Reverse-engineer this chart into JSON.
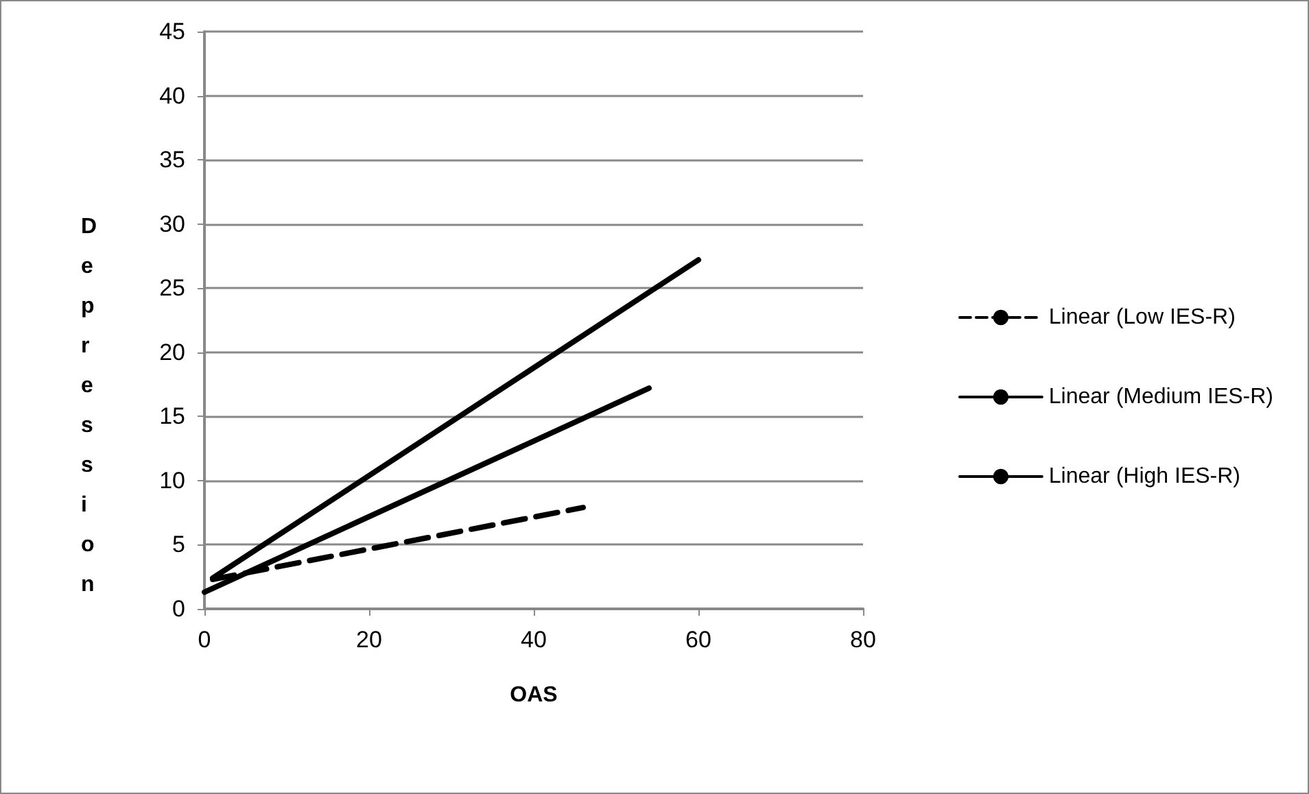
{
  "chart_data": {
    "type": "line",
    "xlabel": "OAS",
    "ylabel": "Depression",
    "xlim": [
      0,
      80
    ],
    "xticks": [
      0,
      20,
      40,
      60,
      80
    ],
    "ylim": [
      0,
      45
    ],
    "yticks": [
      0,
      5,
      10,
      15,
      20,
      25,
      30,
      35,
      40,
      45
    ],
    "grid": "y",
    "legend": "right",
    "marker": "none",
    "series": [
      {
        "name": "Linear (Low IES-R)",
        "color": "#000000",
        "line_style": "dashed",
        "x": [
          1,
          46
        ],
        "values": [
          2.3,
          7.9
        ]
      },
      {
        "name": "Linear (Medium IES-R)",
        "color": "#000000",
        "line_style": "solid",
        "x": [
          0,
          54
        ],
        "values": [
          1.3,
          17.2
        ]
      },
      {
        "name": "Linear (High IES-R)",
        "color": "#000000",
        "line_style": "solid",
        "x": [
          1,
          60
        ],
        "values": [
          2.4,
          27.2
        ]
      }
    ]
  }
}
